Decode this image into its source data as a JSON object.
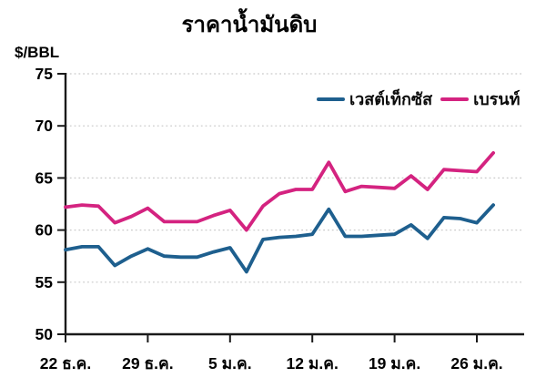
{
  "chart": {
    "title": "ราคาน้ำมันดิบ",
    "y_unit": "$/BBL"
  },
  "chart_data": {
    "type": "line",
    "title": "ราคาน้ำมันดิบ",
    "ylabel": "$/BBL",
    "xlabel": "",
    "ylim": [
      50,
      75
    ],
    "y_ticks": [
      50,
      55,
      60,
      65,
      70,
      75
    ],
    "grid": "horizontal-dotted",
    "grid_color": "#c9c9c9",
    "axis_color": "#1a1a1a",
    "legend_position": "top-right-inside",
    "x_tick_labels": [
      "22 ธ.ค.",
      "29 ธ.ค.",
      "5 ม.ค.",
      "12 ม.ค.",
      "19 ม.ค.",
      "26 ม.ค."
    ],
    "x_tick_indices": [
      0,
      5,
      10,
      15,
      20,
      25
    ],
    "series": [
      {
        "name": "เวสต์เท็กซัส",
        "color": "#1e5f8e",
        "values": [
          58.1,
          58.4,
          58.4,
          56.6,
          57.5,
          58.2,
          57.5,
          57.4,
          57.4,
          57.9,
          58.3,
          56.0,
          59.1,
          59.3,
          59.4,
          59.6,
          62.0,
          59.4,
          59.4,
          59.5,
          59.6,
          60.5,
          59.2,
          61.2,
          61.1,
          60.7,
          62.4
        ]
      },
      {
        "name": "เบรนท์",
        "color": "#d42380",
        "values": [
          62.2,
          62.4,
          62.3,
          60.7,
          61.3,
          62.1,
          60.8,
          60.8,
          60.8,
          61.4,
          61.9,
          60.0,
          62.3,
          63.5,
          63.9,
          63.9,
          66.5,
          63.7,
          64.2,
          64.1,
          64.0,
          65.2,
          63.9,
          65.8,
          65.7,
          65.6,
          67.4
        ]
      }
    ]
  }
}
